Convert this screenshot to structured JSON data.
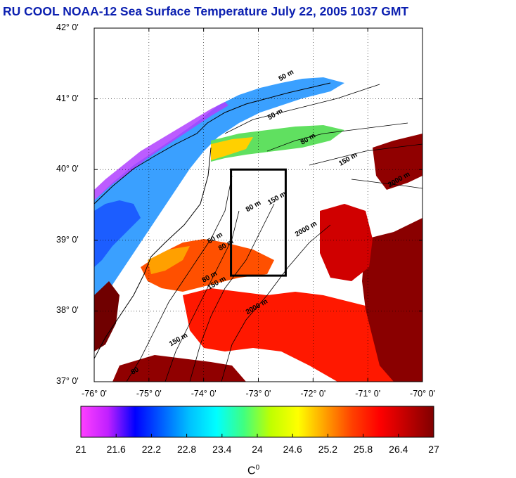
{
  "title": "RU COOL  NOAA-12 Sea Surface Temperature July 22, 2005 1037 GMT",
  "map": {
    "lat_labels": [
      "42° 0'",
      "41° 0'",
      "40° 0'",
      "39° 0'",
      "38° 0'",
      "37° 0'"
    ],
    "lon_labels": [
      "-76° 0'",
      "-75° 0'",
      "-74° 0'",
      "-73° 0'",
      "-72° 0'",
      "-71° 0'",
      "-70° 0'"
    ],
    "lat_range": [
      37,
      42
    ],
    "lon_range": [
      -76,
      -70
    ],
    "study_box": {
      "lon_min": -73.5,
      "lon_max": -72.5,
      "lat_min": 38.5,
      "lat_max": 40.0
    },
    "isobath_labels": [
      {
        "text": "50 m",
        "lon": -72.6,
        "lat": 41.25
      },
      {
        "text": "50 m",
        "lon": -72.8,
        "lat": 40.7
      },
      {
        "text": "80 m",
        "lon": -72.2,
        "lat": 40.35
      },
      {
        "text": "150 m",
        "lon": -71.5,
        "lat": 40.05
      },
      {
        "text": "2000 m",
        "lon": -70.6,
        "lat": 39.75
      },
      {
        "text": "80 m",
        "lon": -73.2,
        "lat": 39.4
      },
      {
        "text": "150 m",
        "lon": -72.8,
        "lat": 39.5
      },
      {
        "text": "2000 m",
        "lon": -72.3,
        "lat": 39.05
      },
      {
        "text": "50 m",
        "lon": -73.9,
        "lat": 38.95
      },
      {
        "text": "80 m",
        "lon": -73.7,
        "lat": 38.85
      },
      {
        "text": "80 m",
        "lon": -74.0,
        "lat": 38.4
      },
      {
        "text": "150 m",
        "lon": -73.9,
        "lat": 38.3
      },
      {
        "text": "2000 m",
        "lon": -73.2,
        "lat": 37.95
      },
      {
        "text": "150 m",
        "lon": -74.6,
        "lat": 37.5
      },
      {
        "text": "80",
        "lon": -75.3,
        "lat": 37.1
      }
    ]
  },
  "colorbar": {
    "ticks": [
      "21",
      "21.6",
      "22.2",
      "22.8",
      "23.4",
      "24",
      "24.6",
      "25.2",
      "25.8",
      "26.4",
      "27"
    ],
    "min": 21,
    "max": 27,
    "unit": "C",
    "unit_sup": "0",
    "colors": [
      "#ff40ff",
      "#c020ff",
      "#0000ff",
      "#0060ff",
      "#00c0ff",
      "#00ffff",
      "#40ff80",
      "#c0ff00",
      "#ffff00",
      "#ffa000",
      "#ff4000",
      "#ff0000",
      "#c00000",
      "#800000"
    ]
  }
}
